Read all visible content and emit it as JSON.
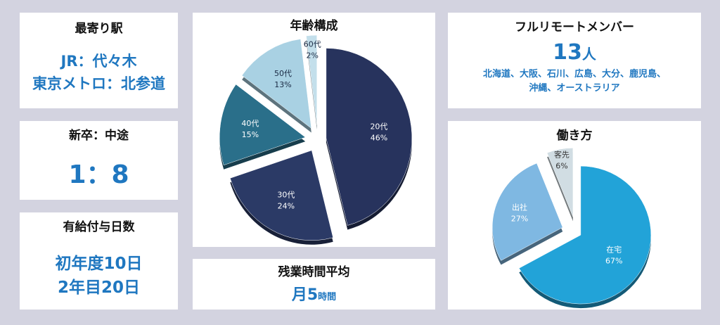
{
  "station": {
    "title": "最寄り駅",
    "line1": "JR：代々木",
    "line2": "東京メトロ：北参道"
  },
  "hire_ratio": {
    "title": "新卒：中途",
    "value": "1：8"
  },
  "paid_leave": {
    "title": "有給付与日数",
    "line1": "初年度10日",
    "line2": "2年目20日"
  },
  "overtime": {
    "title": "残業時間平均",
    "prefix": "月",
    "number": "5",
    "unit": "時間"
  },
  "remote": {
    "title": "フルリモートメンバー",
    "count": "13",
    "count_unit": "人",
    "locations_line1": "北海道、大阪、石川、広島、大分、鹿児島、",
    "locations_line2": "沖縄、オーストラリア"
  },
  "colors": {
    "age_20s": "#27335d",
    "age_30s": "#2b3a66",
    "age_40s": "#2a6f8a",
    "age_50s": "#a9d1e3",
    "age_60s": "#c3dfeb",
    "work_home": "#22a3d8",
    "work_office": "#7fb8e2",
    "work_client": "#d1dde3"
  },
  "chart_data": [
    {
      "type": "pie",
      "title": "年齢構成",
      "categories": [
        "20代",
        "30代",
        "40代",
        "50代",
        "60代"
      ],
      "values": [
        46,
        24,
        15,
        13,
        2
      ],
      "value_labels": [
        "46%",
        "24%",
        "15%",
        "13%",
        "2%"
      ]
    },
    {
      "type": "pie",
      "title": "働き方",
      "categories": [
        "在宅",
        "出社",
        "客先"
      ],
      "values": [
        67,
        27,
        6
      ],
      "value_labels": [
        "67%",
        "27%",
        "6%"
      ]
    }
  ]
}
